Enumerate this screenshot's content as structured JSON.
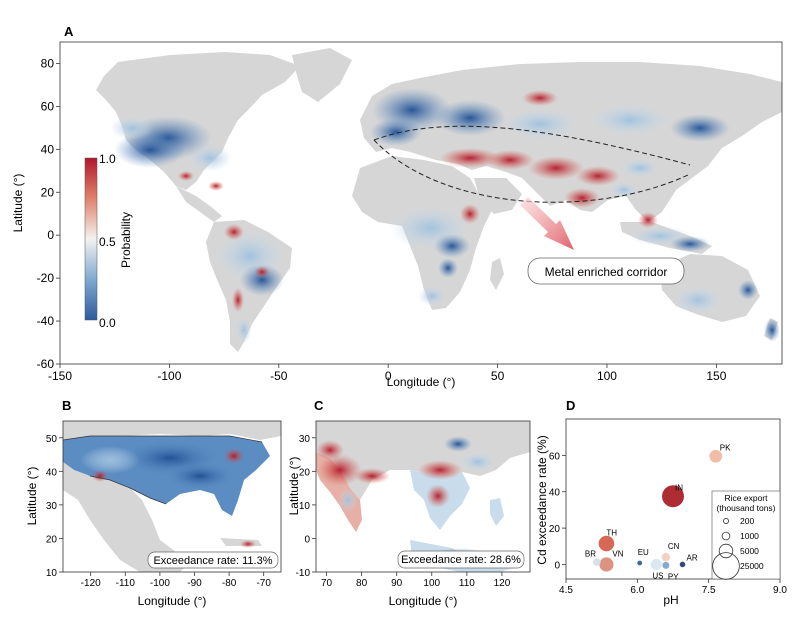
{
  "panels": {
    "a": {
      "letter": "A"
    },
    "b": {
      "letter": "B"
    },
    "c": {
      "letter": "C"
    },
    "d": {
      "letter": "D"
    }
  },
  "colors": {
    "land": "#d6d6d6",
    "low": "#2c5b9e",
    "mid": "#f4f2ef",
    "high": "#b2182b",
    "bubble_dark": "#a71a22",
    "bubble_mid": "#d55a46",
    "bubble_light": "#f0b7a2",
    "bubble_blue": "#2f5e94"
  },
  "chart_data": [
    {
      "panel": "A",
      "type": "heatmap",
      "xlabel": "Longitude (°)",
      "ylabel": "Latitude (°)",
      "xlim": [
        -150,
        180
      ],
      "ylim": [
        -60,
        90
      ],
      "xticks": [
        "-150",
        "-100",
        "-50",
        "0",
        "50",
        "100",
        "150"
      ],
      "yticks": [
        "80",
        "60",
        "40",
        "20",
        "0",
        "-20",
        "-40",
        "-60"
      ],
      "colorbar": {
        "label": "Probability",
        "min_label": "0.0",
        "mid_label": "0.5",
        "max_label": "1.0",
        "range": [
          0,
          1
        ]
      },
      "annotation": "Metal enriched corridor"
    },
    {
      "panel": "B",
      "type": "heatmap",
      "xlabel": "Longitude (°)",
      "ylabel": "Latitude (°)",
      "xlim": [
        -128,
        -65
      ],
      "ylim": [
        10,
        55
      ],
      "xticks": [
        "-120",
        "-110",
        "-100",
        "-90",
        "-80",
        "-70"
      ],
      "yticks": [
        "50",
        "40",
        "30",
        "20",
        "10"
      ],
      "annotation": "Exceedance rate: 11.3%"
    },
    {
      "panel": "C",
      "type": "heatmap",
      "xlabel": "Longitude (°)",
      "ylabel": "Latitude (°)",
      "xlim": [
        67,
        128
      ],
      "ylim": [
        -10,
        35
      ],
      "xticks": [
        "70",
        "80",
        "90",
        "100",
        "110",
        "120"
      ],
      "yticks": [
        "30",
        "20",
        "10",
        "0",
        "-10"
      ],
      "annotation": "Exceedance rate: 28.6%"
    },
    {
      "panel": "D",
      "type": "scatter",
      "xlabel": "pH",
      "ylabel": "Cd exceedance rate (%)",
      "xlim": [
        4.5,
        9.0
      ],
      "ylim": [
        -8,
        80
      ],
      "xticks": [
        4.5,
        6.0,
        7.5,
        9.0
      ],
      "yticks": [
        0,
        20,
        40,
        60
      ],
      "points": [
        {
          "label": "PK",
          "ph": 7.65,
          "rate": 59.5,
          "export": 4200,
          "color": "#f0b7a2"
        },
        {
          "label": "IN",
          "ph": 6.75,
          "rate": 37.5,
          "export": 16000,
          "color": "#a71a22"
        },
        {
          "label": "TH",
          "ph": 5.35,
          "rate": 11.5,
          "export": 7000,
          "color": "#d55a46"
        },
        {
          "label": "VN",
          "ph": 5.35,
          "rate": 0.0,
          "export": 5500,
          "color": "#d98a75"
        },
        {
          "label": "BR",
          "ph": 5.15,
          "rate": 1.2,
          "export": 900,
          "color": "#cfdeea"
        },
        {
          "label": "CN",
          "ph": 6.6,
          "rate": 4.0,
          "export": 1300,
          "color": "#f2cdbd"
        },
        {
          "label": "EU",
          "ph": 6.05,
          "rate": 0.8,
          "export": 150,
          "color": "#2f5e94"
        },
        {
          "label": "US",
          "ph": 6.4,
          "rate": 0.0,
          "export": 3000,
          "color": "#d7e6f0"
        },
        {
          "label": "PY",
          "ph": 6.6,
          "rate": -0.5,
          "export": 700,
          "color": "#7ea3c6"
        },
        {
          "label": "AR",
          "ph": 6.95,
          "rate": 0.0,
          "export": 300,
          "color": "#213c6b"
        }
      ],
      "size_legend": {
        "title_line1": "Rice export",
        "title_line2": "(thousand tons)",
        "entries": [
          "200",
          "1000",
          "5000",
          "25000"
        ],
        "values": [
          200,
          1000,
          5000,
          25000
        ]
      }
    }
  ]
}
